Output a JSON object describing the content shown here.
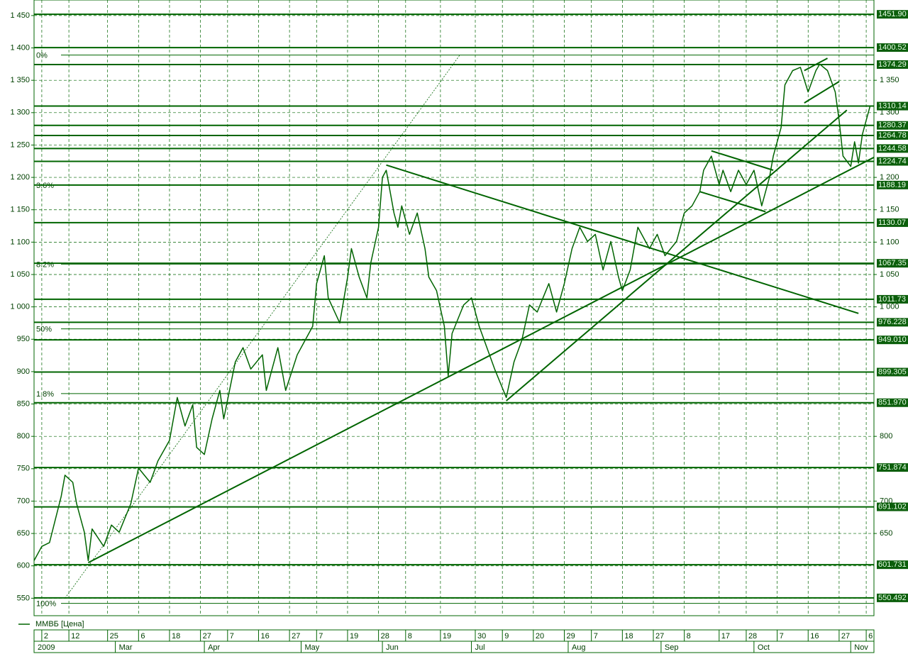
{
  "chart_data": {
    "type": "line",
    "color": "#006400",
    "grid": true,
    "xlim": [
      0,
      217
    ],
    "ylim": [
      523,
      1474
    ],
    "yticks": [
      550,
      600,
      650,
      700,
      750,
      800,
      850,
      900,
      950,
      {
        "value": 1000,
        "label": "1 000"
      },
      {
        "value": 1050,
        "label": "1 050"
      },
      {
        "value": 1100,
        "label": "1 100"
      },
      {
        "value": 1150,
        "label": "1 150"
      },
      {
        "value": 1200,
        "label": "1 200"
      },
      {
        "value": 1250,
        "label": "1 250"
      },
      {
        "value": 1300,
        "label": "1 300"
      },
      {
        "value": 1350,
        "label": "1 350"
      },
      {
        "value": 1400,
        "label": "1 400"
      },
      {
        "value": 1450,
        "label": "1 450"
      }
    ],
    "y2ticks": [
      650,
      700,
      800,
      {
        "value": 1000,
        "label": "1 000"
      },
      {
        "value": 1050,
        "label": "1 050"
      },
      {
        "value": 1100,
        "label": "1 100"
      },
      {
        "value": 1150,
        "label": "1 150"
      },
      {
        "value": 1200,
        "label": "1 200"
      },
      {
        "value": 1300,
        "label": "1 300"
      },
      {
        "value": 1350,
        "label": "1 350"
      }
    ],
    "xticks": [
      {
        "value": 2,
        "label": "2"
      },
      {
        "value": 9,
        "label": "12"
      },
      {
        "value": 19,
        "label": "25"
      },
      {
        "value": 27,
        "label": "6"
      },
      {
        "value": 35,
        "label": "18"
      },
      {
        "value": 43,
        "label": "27"
      },
      {
        "value": 50,
        "label": "7"
      },
      {
        "value": 58,
        "label": "16"
      },
      {
        "value": 66,
        "label": "27"
      },
      {
        "value": 73,
        "label": "7"
      },
      {
        "value": 81,
        "label": "19"
      },
      {
        "value": 89,
        "label": "28"
      },
      {
        "value": 96,
        "label": "8"
      },
      {
        "value": 105,
        "label": "19"
      },
      {
        "value": 114,
        "label": "30"
      },
      {
        "value": 121,
        "label": "9"
      },
      {
        "value": 129,
        "label": "20"
      },
      {
        "value": 137,
        "label": "29"
      },
      {
        "value": 144,
        "label": "7"
      },
      {
        "value": 152,
        "label": "18"
      },
      {
        "value": 160,
        "label": "27"
      },
      {
        "value": 168,
        "label": "8"
      },
      {
        "value": 177,
        "label": "17"
      },
      {
        "value": 184,
        "label": "28"
      },
      {
        "value": 192,
        "label": "7"
      },
      {
        "value": 200,
        "label": "16"
      },
      {
        "value": 208,
        "label": "27"
      },
      {
        "value": 215,
        "label": "6"
      }
    ],
    "months": [
      {
        "value": 0,
        "label": "2009"
      },
      {
        "value": 21,
        "label": "Mar"
      },
      {
        "value": 44,
        "label": "Apr"
      },
      {
        "value": 69,
        "label": "May"
      },
      {
        "value": 90,
        "label": "Jun"
      },
      {
        "value": 113,
        "label": "Jul"
      },
      {
        "value": 138,
        "label": "Aug"
      },
      {
        "value": 162,
        "label": "Sep"
      },
      {
        "value": 186,
        "label": "Oct"
      },
      {
        "value": 211,
        "label": "Nov"
      }
    ],
    "x": [
      0,
      2,
      4,
      7,
      8,
      10,
      11,
      13,
      14,
      15,
      18,
      20,
      22,
      25,
      27,
      30,
      32,
      35,
      37,
      39,
      41,
      42,
      44,
      46,
      48,
      49,
      52,
      54,
      56,
      59,
      60,
      63,
      65,
      68,
      70,
      72,
      73,
      75,
      76,
      79,
      81,
      82,
      84,
      86,
      87,
      89,
      90,
      91,
      93,
      94,
      95,
      97,
      99,
      101,
      102,
      104,
      106,
      107,
      108,
      111,
      113,
      115,
      117,
      119,
      122,
      124,
      126,
      128,
      130,
      133,
      135,
      137,
      139,
      141,
      143,
      145,
      147,
      149,
      151,
      152,
      154,
      156,
      159,
      161,
      163,
      166,
      168,
      170,
      172,
      173,
      175,
      177,
      178,
      180,
      182,
      184,
      186,
      188,
      190,
      191,
      193,
      194,
      196,
      198,
      200,
      202,
      203,
      205,
      207,
      208,
      209,
      211,
      212,
      213,
      214,
      216
    ],
    "series": [
      {
        "name": "ММВБ [Цена]",
        "color": "#006400",
        "values": [
          608,
          630,
          636,
          707,
          740,
          729,
          696,
          652,
          608,
          657,
          630,
          663,
          652,
          696,
          751,
          729,
          762,
          794,
          860,
          816,
          849,
          783,
          772,
          827,
          871,
          827,
          915,
          937,
          904,
          926,
          871,
          937,
          871,
          926,
          948,
          970,
          1036,
          1079,
          1014,
          975,
          1046,
          1090,
          1046,
          1014,
          1068,
          1123,
          1200,
          1211,
          1145,
          1123,
          1156,
          1112,
          1145,
          1090,
          1046,
          1025,
          970,
          893,
          959,
          1003,
          1014,
          970,
          937,
          904,
          860,
          915,
          948,
          1003,
          992,
          1036,
          992,
          1036,
          1090,
          1123,
          1101,
          1112,
          1057,
          1101,
          1046,
          1025,
          1057,
          1123,
          1090,
          1112,
          1079,
          1101,
          1145,
          1156,
          1178,
          1211,
          1233,
          1189,
          1211,
          1178,
          1211,
          1189,
          1211,
          1156,
          1200,
          1233,
          1277,
          1343,
          1365,
          1370,
          1332,
          1365,
          1375,
          1365,
          1332,
          1288,
          1233,
          1217,
          1255,
          1222,
          1266,
          1310
        ]
      }
    ],
    "levels": [
      {
        "value": 1451.9,
        "label": "1451.90"
      },
      {
        "value": 1400.52,
        "label": "1400.52"
      },
      {
        "value": 1374.29,
        "label": "1374.29"
      },
      {
        "value": 1310.14,
        "label": "1310.14"
      },
      {
        "value": 1280.37,
        "label": "1280.37"
      },
      {
        "value": 1264.78,
        "label": "1264.78"
      },
      {
        "value": 1244.58,
        "label": "1244.58"
      },
      {
        "value": 1224.74,
        "label": "1224.74"
      },
      {
        "value": 1188.19,
        "label": "1188.19"
      },
      {
        "value": 1130.07,
        "label": "1130.07"
      },
      {
        "value": 1067.35,
        "label": "1067.35"
      },
      {
        "value": 1011.73,
        "label": "1011.73"
      },
      {
        "value": 976.228,
        "label": "976.228"
      },
      {
        "value": 949.01,
        "label": "949.010"
      },
      {
        "value": 899.305,
        "label": "899.305"
      },
      {
        "value": 851.97,
        "label": "851.970"
      },
      {
        "value": 751.874,
        "label": "751.874"
      },
      {
        "value": 691.102,
        "label": "691.102"
      },
      {
        "value": 601.731,
        "label": "601.731"
      },
      {
        "value": 550.492,
        "label": "550.492"
      }
    ],
    "fib_levels": [
      {
        "value": 1389,
        "label": "0%"
      },
      {
        "value": 1188,
        "label": "3.6%"
      },
      {
        "value": 1066,
        "label": "8.2%"
      },
      {
        "value": 966,
        "label": "50%"
      },
      {
        "value": 866,
        "label": "1.8%"
      },
      {
        "value": 542,
        "label": "100%"
      }
    ],
    "trendlines": [
      {
        "x": [
          14,
          217
        ],
        "values": [
          605,
          1231
        ]
      },
      {
        "x": [
          91,
          213
        ],
        "values": [
          1219,
          990
        ]
      },
      {
        "x": [
          122,
          210
        ],
        "values": [
          855,
          1304
        ]
      },
      {
        "x": [
          175,
          191
        ],
        "values": [
          1241,
          1211
        ]
      },
      {
        "x": [
          172,
          189
        ],
        "values": [
          1178,
          1147
        ]
      },
      {
        "x": [
          199,
          205
        ],
        "values": [
          1365,
          1384
        ]
      },
      {
        "x": [
          199,
          208
        ],
        "values": [
          1315,
          1348
        ]
      }
    ],
    "guide": {
      "x": [
        8,
        110
      ],
      "values": [
        550,
        1389
      ]
    }
  }
}
